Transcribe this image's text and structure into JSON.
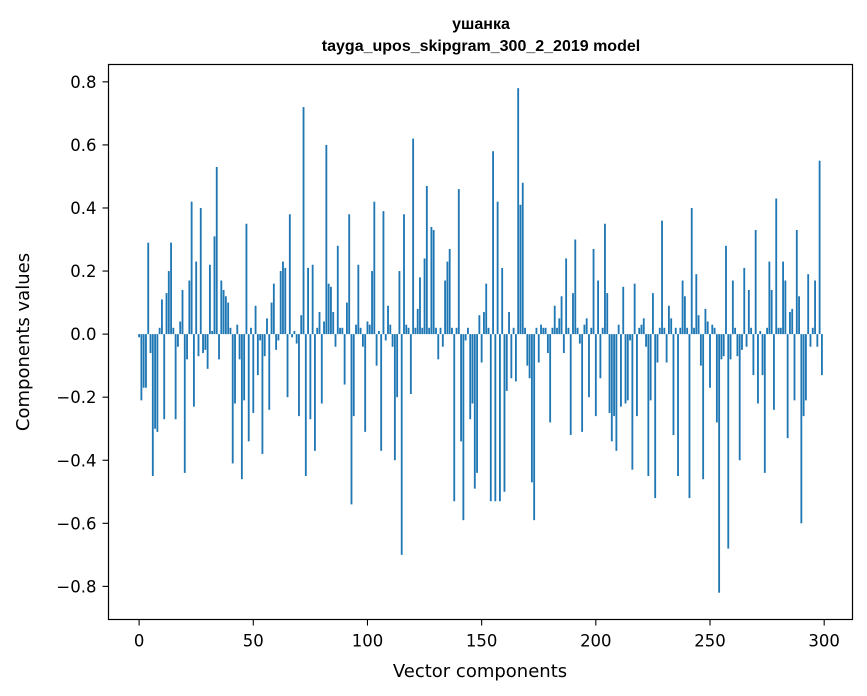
{
  "chart_data": {
    "type": "bar",
    "title": "ушанка",
    "subtitle": "tayga_upos_skipgram_300_2_2019 model",
    "xlabel": "Vector components",
    "ylabel": "Components values",
    "xlim": [
      -13.4,
      312.4
    ],
    "ylim": [
      -0.905,
      0.855
    ],
    "xticks": [
      0,
      50,
      100,
      150,
      200,
      250,
      300
    ],
    "xtick_labels": [
      "0",
      "50",
      "100",
      "150",
      "200",
      "250",
      "300"
    ],
    "yticks": [
      -0.8,
      -0.6,
      -0.4,
      -0.2,
      0.0,
      0.2,
      0.4,
      0.6,
      0.8
    ],
    "ytick_labels": [
      "−0.8",
      "−0.6",
      "−0.4",
      "−0.2",
      "0.0",
      "0.2",
      "0.4",
      "0.6",
      "0.8"
    ],
    "bar_color": "#1f77b4",
    "grid": false,
    "values": [
      -0.01,
      -0.21,
      -0.17,
      -0.17,
      0.29,
      -0.06,
      -0.45,
      -0.3,
      -0.31,
      0.02,
      0.11,
      -0.27,
      0.13,
      0.2,
      0.29,
      0.02,
      -0.27,
      -0.04,
      0.04,
      0.14,
      -0.44,
      -0.08,
      0.17,
      0.42,
      -0.23,
      0.23,
      -0.07,
      0.4,
      -0.06,
      -0.05,
      -0.11,
      0.22,
      0.01,
      0.31,
      0.53,
      -0.08,
      0.17,
      0.14,
      0.12,
      0.1,
      0.02,
      -0.41,
      -0.22,
      0.03,
      -0.08,
      -0.46,
      -0.21,
      0.35,
      -0.34,
      0.02,
      -0.25,
      0.09,
      -0.13,
      -0.02,
      -0.38,
      -0.07,
      0.05,
      -0.24,
      0.1,
      0.16,
      -0.05,
      -0.02,
      0.2,
      0.23,
      0.21,
      -0.2,
      0.38,
      -0.01,
      0.01,
      -0.03,
      -0.26,
      0.06,
      0.72,
      -0.45,
      0.21,
      -0.27,
      0.22,
      -0.37,
      0.02,
      0.07,
      -0.22,
      0.04,
      0.6,
      0.16,
      0.15,
      0.07,
      -0.04,
      0.28,
      0.02,
      0.02,
      -0.16,
      0.1,
      0.38,
      -0.54,
      -0.26,
      0.03,
      0.22,
      0.02,
      -0.04,
      -0.31,
      0.04,
      0.03,
      0.2,
      0.42,
      -0.1,
      0.01,
      -0.37,
      0.39,
      -0.02,
      0.09,
      0.03,
      -0.04,
      -0.4,
      -0.2,
      0.2,
      -0.7,
      0.38,
      0.03,
      0.02,
      -0.19,
      0.62,
      0.02,
      0.08,
      0.18,
      0.02,
      0.24,
      0.47,
      0.02,
      0.34,
      0.33,
      0.02,
      -0.08,
      0.02,
      -0.04,
      0.17,
      0.23,
      0.27,
      0.02,
      -0.53,
      0.02,
      0.46,
      -0.34,
      -0.59,
      -0.02,
      0.02,
      -0.27,
      -0.22,
      -0.49,
      -0.44,
      0.06,
      -0.09,
      0.07,
      0.16,
      0.02,
      -0.53,
      0.58,
      -0.53,
      0.42,
      -0.53,
      0.21,
      -0.5,
      -0.18,
      0.07,
      -0.14,
      0.02,
      -0.15,
      0.78,
      0.41,
      0.48,
      0.02,
      -0.1,
      -0.14,
      -0.47,
      -0.59,
      0.02,
      -0.09,
      0.03,
      0.02,
      0.02,
      -0.06,
      -0.28,
      0.02,
      0.09,
      0.02,
      0.05,
      0.12,
      -0.06,
      0.24,
      0.02,
      -0.32,
      0.13,
      0.3,
      0.02,
      -0.03,
      -0.31,
      0.03,
      0.05,
      -0.2,
      0.02,
      0.27,
      -0.26,
      0.17,
      -0.14,
      0.02,
      0.35,
      0.13,
      -0.25,
      -0.34,
      -0.26,
      -0.37,
      0.03,
      -0.23,
      0.15,
      -0.22,
      -0.21,
      -0.02,
      -0.43,
      0.16,
      -0.26,
      0.02,
      0.03,
      0.05,
      -0.04,
      -0.45,
      -0.21,
      0.13,
      -0.52,
      -0.09,
      0.02,
      0.36,
      0.02,
      -0.09,
      0.09,
      0.05,
      -0.32,
      0.02,
      -0.45,
      0.02,
      0.17,
      0.12,
      0.02,
      -0.52,
      0.4,
      0.02,
      0.19,
      0.06,
      -0.1,
      -0.46,
      0.08,
      0.04,
      -0.17,
      0.03,
      0.02,
      -0.28,
      -0.82,
      -0.08,
      -0.07,
      0.28,
      -0.68,
      -0.08,
      0.17,
      0.02,
      -0.07,
      -0.4,
      -0.05,
      0.21,
      -0.04,
      0.14,
      0.02,
      -0.13,
      0.33,
      -0.22,
      0.01,
      -0.13,
      -0.44,
      0.02,
      0.23,
      0.14,
      -0.24,
      0.43,
      0.02,
      0.02,
      0.23,
      0.17,
      -0.33,
      0.07,
      0.08,
      -0.21,
      0.33,
      0.12,
      -0.6,
      -0.26,
      -0.21,
      0.19,
      -0.04,
      0.02,
      0.17,
      -0.04,
      0.55,
      -0.13
    ]
  }
}
